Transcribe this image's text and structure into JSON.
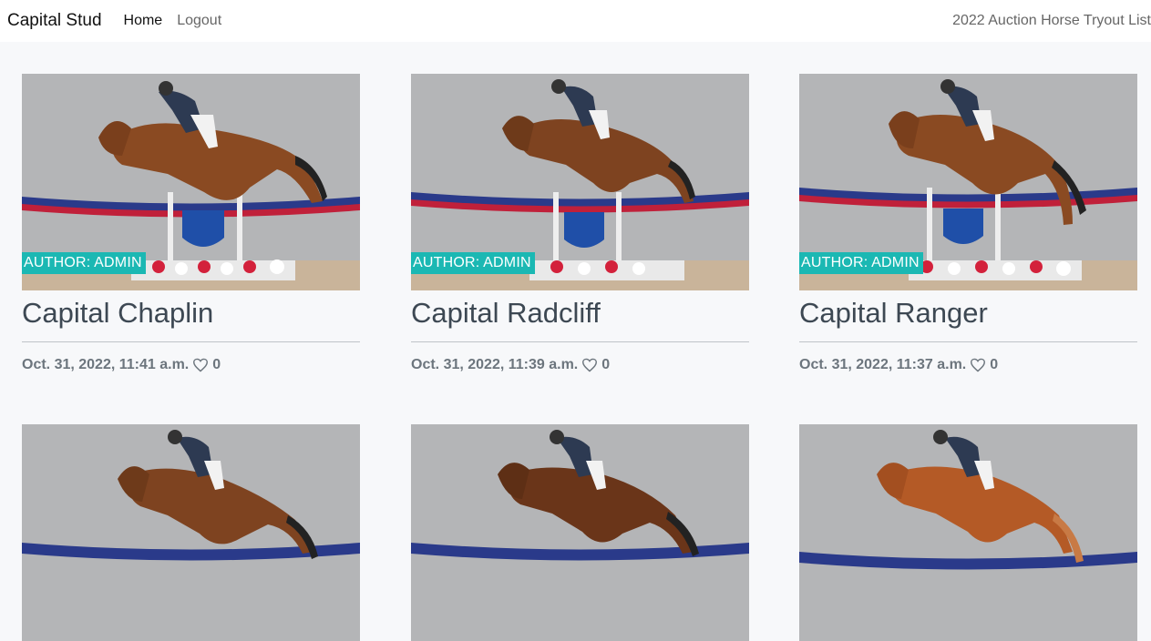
{
  "nav": {
    "brand": "Capital Stud",
    "links": [
      "Home",
      "Logout"
    ],
    "right": "2022 Auction Horse Tryout List"
  },
  "cards": [
    {
      "author": "AUTHOR: ADMIN",
      "title": "Capital Chaplin",
      "date": "Oct. 31, 2022, 11:41 a.m.",
      "likes": "0"
    },
    {
      "author": "AUTHOR: ADMIN",
      "title": "Capital Radcliff",
      "date": "Oct. 31, 2022, 11:39 a.m.",
      "likes": "0"
    },
    {
      "author": "AUTHOR: ADMIN",
      "title": "Capital Ranger",
      "date": "Oct. 31, 2022, 11:37 a.m.",
      "likes": "0"
    },
    {
      "author": "",
      "title": "",
      "date": "",
      "likes": ""
    },
    {
      "author": "",
      "title": "",
      "date": "",
      "likes": ""
    },
    {
      "author": "",
      "title": "",
      "date": "",
      "likes": ""
    }
  ],
  "icons": {
    "like": "heart-icon"
  },
  "colors": {
    "accent": "#1bb8b3",
    "horse_bay": "#8a4a22",
    "horse_chestnut": "#b45a26"
  }
}
